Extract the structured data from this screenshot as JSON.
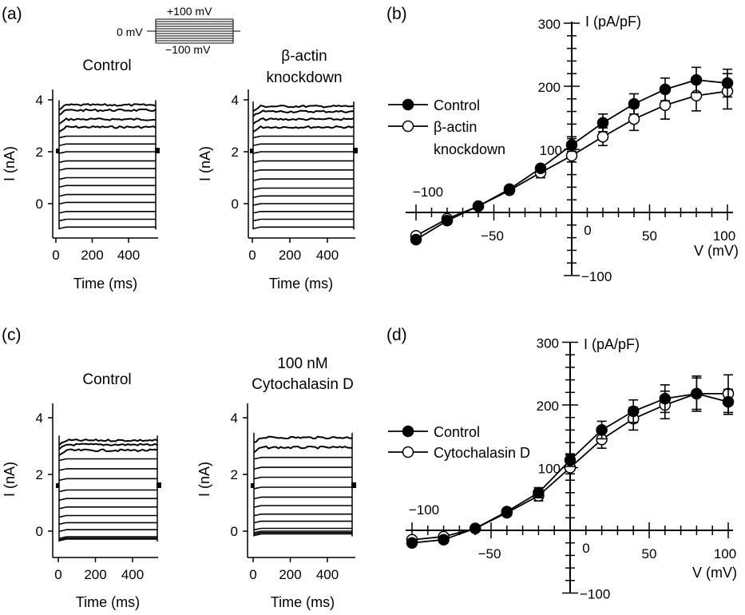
{
  "panel_labels": {
    "a": "(a)",
    "b": "(b)",
    "c": "(c)",
    "d": "(d)"
  },
  "protocol": {
    "top": "+100 mV",
    "left": "0 mV",
    "bottom": "−100 mV"
  },
  "trace_axes": {
    "xlabel": "Time (ms)",
    "ylabel": "I (nA)",
    "xticks": [
      "0",
      "200",
      "400"
    ],
    "yticks": [
      "0",
      "2",
      "4"
    ]
  },
  "iv_axes": {
    "xlabel": "V (mV)",
    "ylabel": "I (pA/pF)",
    "xticks": [
      "−100",
      "−50",
      "0",
      "50",
      "100"
    ],
    "yticks": [
      "300",
      "200",
      "100",
      "−100"
    ]
  },
  "colors": {
    "control": "#000000",
    "treated": "#ffffff"
  },
  "chart_data": [
    {
      "panel": "a-left",
      "type": "line",
      "title": "Control",
      "xlabel": "Time (ms)",
      "ylabel": "I (nA)",
      "xlim": [
        0,
        520
      ],
      "ylim": [
        -1,
        4.3
      ],
      "series": [
        {
          "steady_current_nA": [
            -0.9,
            -0.6,
            -0.3,
            0.05,
            0.35,
            0.7,
            1.0,
            1.35,
            1.65,
            2.0,
            2.3,
            2.6,
            2.95,
            3.25,
            3.6,
            3.8
          ]
        }
      ]
    },
    {
      "panel": "a-right",
      "type": "line",
      "title": "β-actin knockdown",
      "xlabel": "Time (ms)",
      "ylabel": "I (nA)",
      "xlim": [
        0,
        520
      ],
      "ylim": [
        -1,
        4.3
      ],
      "series": [
        {
          "steady_current_nA": [
            -0.9,
            -0.6,
            -0.3,
            0.0,
            0.3,
            0.6,
            0.95,
            1.3,
            1.65,
            2.0,
            2.3,
            2.6,
            2.95,
            3.25,
            3.55,
            3.75
          ]
        }
      ]
    },
    {
      "panel": "b",
      "type": "line",
      "xlabel": "V (mV)",
      "ylabel": "I (pA/pF)",
      "xlim": [
        -100,
        100
      ],
      "ylim": [
        -100,
        300
      ],
      "x": [
        -100,
        -80,
        -60,
        -40,
        -20,
        0,
        20,
        40,
        60,
        80,
        100
      ],
      "series": [
        {
          "name": "Control",
          "values": [
            -43,
            -13,
            10,
            37,
            70,
            107,
            142,
            172,
            195,
            210,
            205
          ],
          "errors": [
            5,
            4,
            4,
            5,
            7,
            10,
            14,
            16,
            18,
            20,
            22
          ]
        },
        {
          "name": "β-actin knockdown",
          "values": [
            -37,
            -10,
            10,
            35,
            63,
            90,
            120,
            148,
            170,
            185,
            192
          ],
          "errors": [
            5,
            4,
            4,
            5,
            8,
            10,
            14,
            18,
            22,
            24,
            28
          ]
        }
      ]
    },
    {
      "panel": "c-left",
      "type": "line",
      "title": "Control",
      "xlabel": "Time (ms)",
      "ylabel": "I (nA)",
      "xlim": [
        0,
        520
      ],
      "ylim": [
        -0.5,
        4.3
      ],
      "series": [
        {
          "steady_current_nA": [
            -0.28,
            -0.25,
            -0.2,
            0.05,
            0.3,
            0.55,
            0.85,
            1.15,
            1.45,
            1.85,
            2.2,
            2.55,
            2.85,
            3.05,
            3.2
          ]
        }
      ]
    },
    {
      "panel": "c-right",
      "type": "line",
      "title": "100 nM Cytochalasin D",
      "xlabel": "Time (ms)",
      "ylabel": "I (nA)",
      "xlim": [
        0,
        520
      ],
      "ylim": [
        -0.5,
        4.3
      ],
      "series": [
        {
          "steady_current_nA": [
            -0.1,
            -0.05,
            0.0,
            0.1,
            0.35,
            0.6,
            0.9,
            1.2,
            1.55,
            1.9,
            2.25,
            2.6,
            2.95,
            3.3
          ]
        }
      ]
    },
    {
      "panel": "d",
      "type": "line",
      "xlabel": "V (mV)",
      "ylabel": "I (pA/pF)",
      "xlim": [
        -100,
        100
      ],
      "ylim": [
        -100,
        300
      ],
      "x": [
        -100,
        -80,
        -60,
        -40,
        -20,
        0,
        20,
        40,
        60,
        80,
        100
      ],
      "series": [
        {
          "name": "Control",
          "values": [
            -20,
            -15,
            3,
            30,
            60,
            112,
            160,
            190,
            210,
            218,
            205
          ],
          "errors": [
            5,
            5,
            4,
            5,
            8,
            10,
            14,
            18,
            22,
            25,
            20
          ]
        },
        {
          "name": "Cytochalasin D",
          "values": [
            -15,
            -10,
            3,
            28,
            55,
            100,
            145,
            178,
            200,
            218,
            218
          ],
          "errors": [
            5,
            5,
            4,
            5,
            8,
            10,
            14,
            18,
            22,
            28,
            30
          ]
        }
      ]
    }
  ]
}
